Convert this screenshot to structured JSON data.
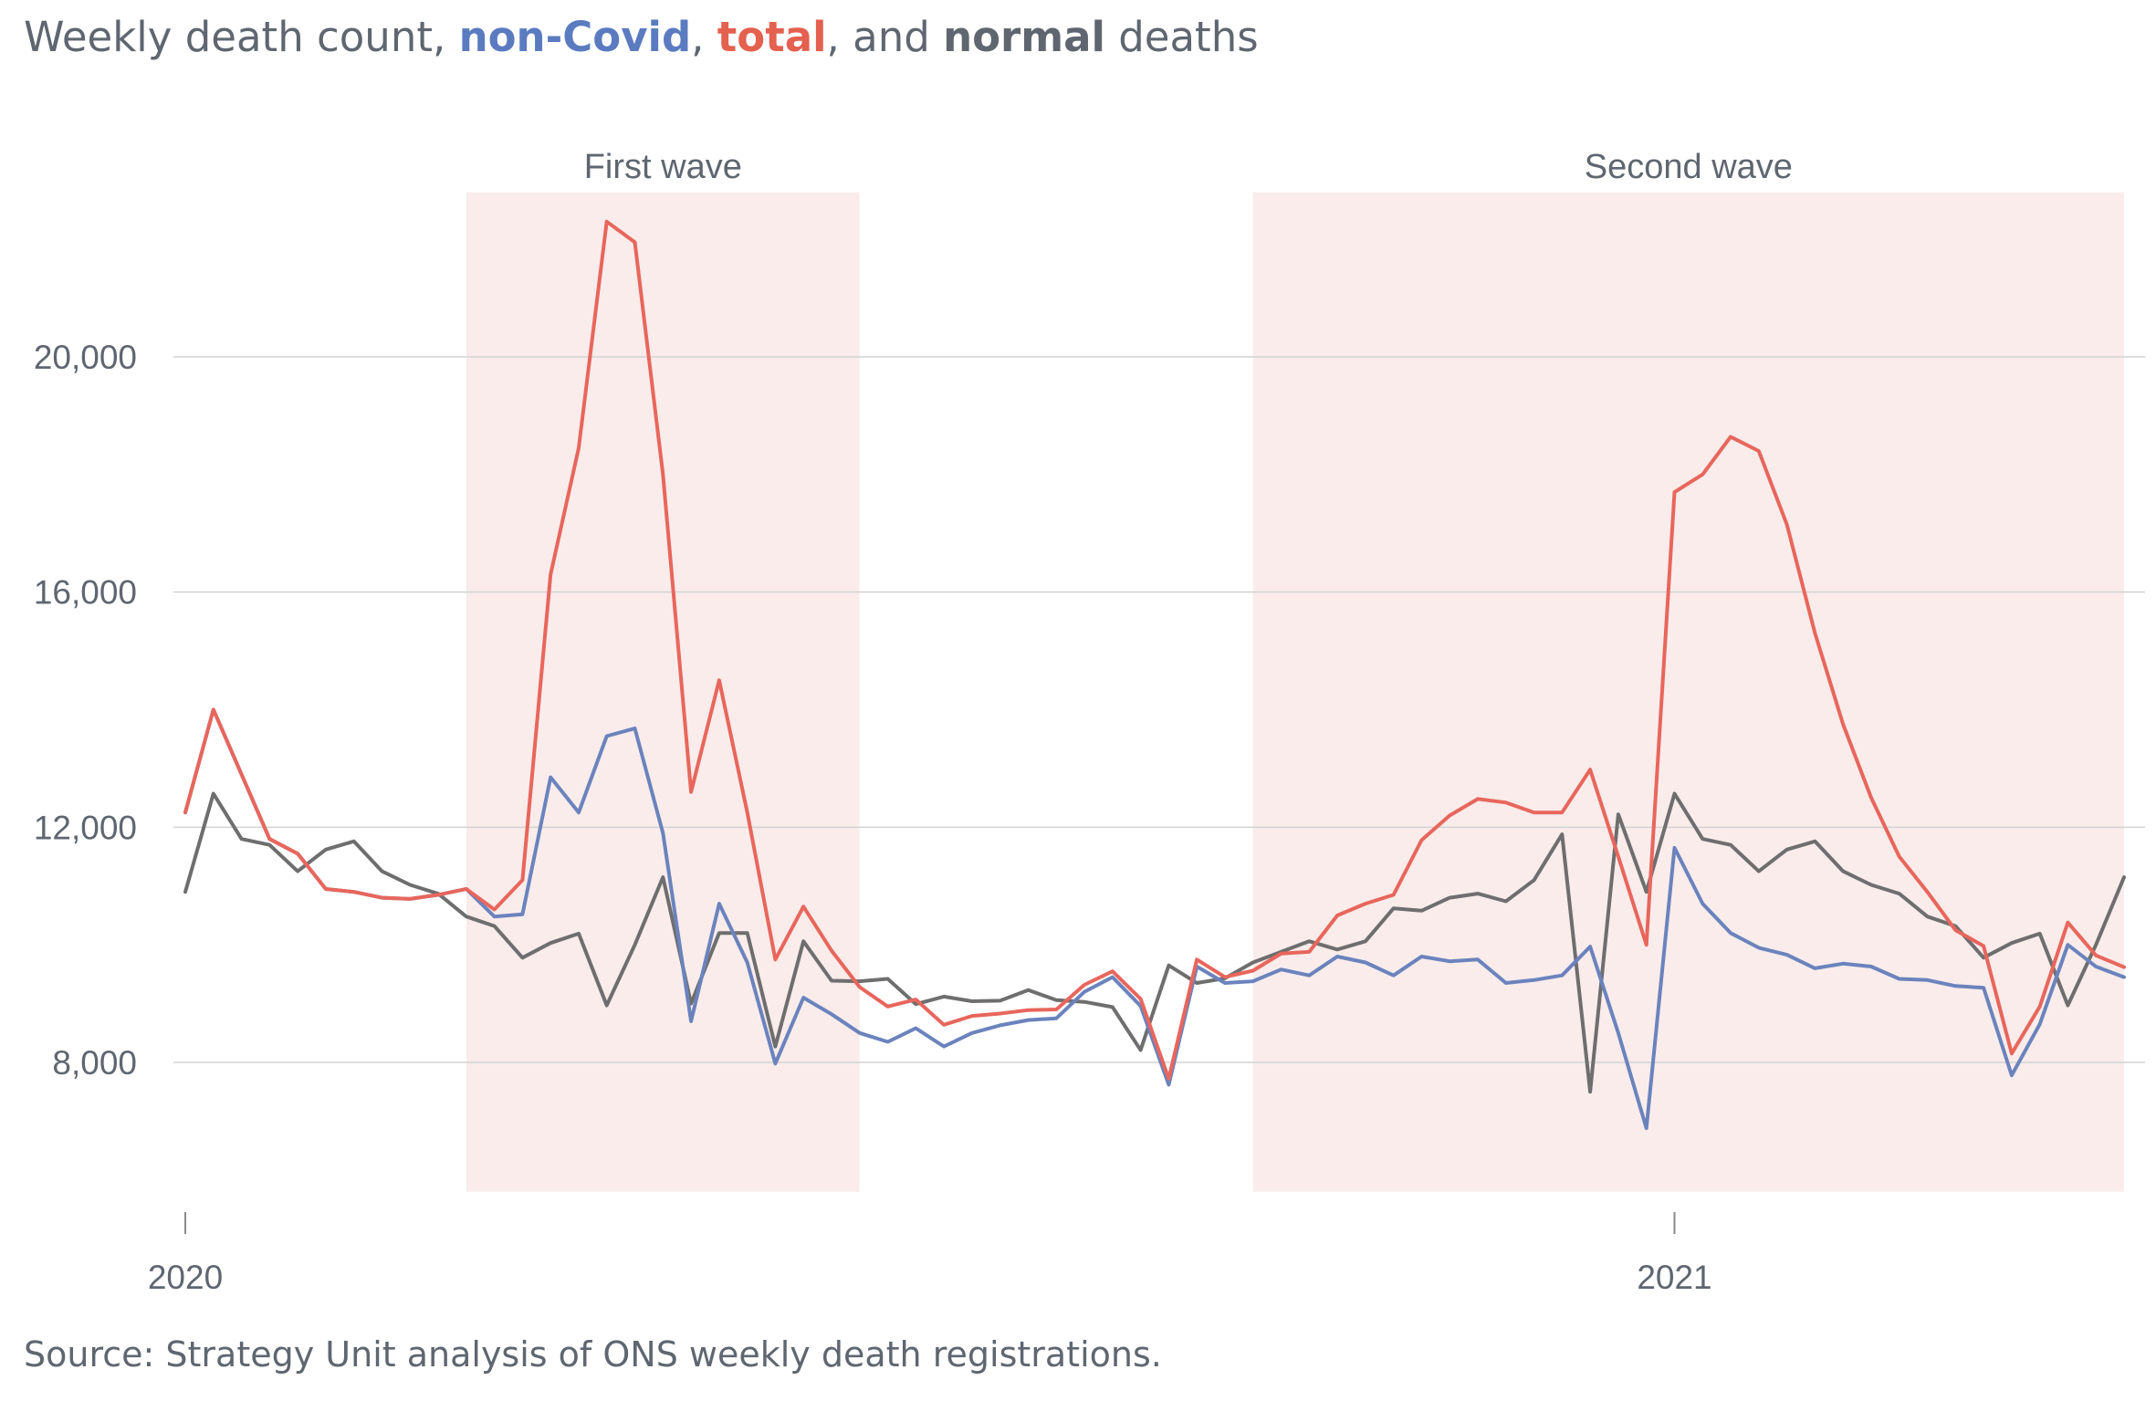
{
  "title": {
    "prefix": "Weekly death count, ",
    "noncovid": "non-Covid",
    "sep1": ", ",
    "total": "total",
    "sep2": ", and ",
    "normal": "normal",
    "suffix": " deaths"
  },
  "source": "Source: Strategy Unit analysis of ONS weekly death registrations.",
  "colors": {
    "noncovid": "#6b83bd",
    "total": "#e8665c",
    "normal": "#6e6e6e",
    "title_noncovid": "#5b7bc0",
    "title_total": "#e4604f",
    "title_normal": "#5f6670",
    "wave_shade": "#f9eceb",
    "gridline": "#d3d3d3",
    "text": "#5f6670"
  },
  "chart_data": {
    "type": "line",
    "title": "Weekly death count, non-Covid, total, and normal deaths",
    "xlabel": "",
    "ylabel": "",
    "ylim": [
      5800,
      22800
    ],
    "yticks": [
      8000,
      12000,
      16000,
      20000
    ],
    "ytick_labels": [
      "8,000",
      "12,000",
      "16,000",
      "20,000"
    ],
    "xticks": [
      {
        "label": "2020",
        "week": 0
      },
      {
        "label": "2021",
        "week": 53
      }
    ],
    "grid": true,
    "legend": "in-title",
    "annotations": [
      {
        "label": "First wave",
        "start_week": 10,
        "end_week": 24
      },
      {
        "label": "Second wave",
        "start_week": 38,
        "end_week": 69
      }
    ],
    "x": [
      0,
      1,
      2,
      3,
      4,
      5,
      6,
      7,
      8,
      9,
      10,
      11,
      12,
      13,
      14,
      15,
      16,
      17,
      18,
      19,
      20,
      21,
      22,
      23,
      24,
      25,
      26,
      27,
      28,
      29,
      30,
      31,
      32,
      33,
      34,
      35,
      36,
      37,
      38,
      39,
      40,
      41,
      42,
      43,
      44,
      45,
      46,
      47,
      48,
      49,
      50,
      51,
      52,
      53,
      54,
      55,
      56,
      57,
      58,
      59,
      60,
      61,
      62,
      63,
      64,
      65,
      66,
      67,
      68,
      69
    ],
    "series": [
      {
        "name": "non-Covid",
        "color_key": "noncovid",
        "values": [
          12250,
          14000,
          12900,
          11800,
          11550,
          10950,
          10900,
          10800,
          10780,
          10850,
          10950,
          10480,
          10520,
          12850,
          12250,
          13550,
          13680,
          11900,
          8700,
          10700,
          9700,
          7980,
          9100,
          8820,
          8500,
          8350,
          8580,
          8270,
          8500,
          8630,
          8720,
          8750,
          9200,
          9450,
          8960,
          7620,
          9630,
          9350,
          9380,
          9580,
          9480,
          9800,
          9700,
          9480,
          9800,
          9720,
          9750,
          9350,
          9400,
          9480,
          9970,
          8500,
          6880,
          11650,
          10700,
          10200,
          9950,
          9830,
          9600,
          9680,
          9630,
          9420,
          9400,
          9300,
          9270,
          7780,
          8650,
          10000,
          9630,
          9450
        ]
      },
      {
        "name": "total",
        "color_key": "total",
        "values": [
          12250,
          14000,
          12900,
          11800,
          11550,
          10950,
          10900,
          10800,
          10780,
          10850,
          10950,
          10600,
          11100,
          16300,
          18450,
          22300,
          21950,
          18000,
          12600,
          14500,
          12250,
          9750,
          10650,
          9900,
          9280,
          8950,
          9070,
          8640,
          8790,
          8830,
          8890,
          8900,
          9320,
          9550,
          9080,
          7720,
          9750,
          9450,
          9560,
          9850,
          9880,
          10500,
          10700,
          10850,
          11780,
          12200,
          12480,
          12420,
          12250,
          12250,
          12980,
          11500,
          10000,
          17700,
          18000,
          18640,
          18400,
          17150,
          15300,
          13750,
          12500,
          11500,
          10900,
          10250,
          9980,
          8150,
          8950,
          10380,
          9820,
          9620
        ]
      },
      {
        "name": "normal",
        "color_key": "normal",
        "values": [
          10900,
          12570,
          11800,
          11700,
          11250,
          11620,
          11760,
          11250,
          11020,
          10870,
          10480,
          10320,
          9780,
          10030,
          10190,
          8970,
          10000,
          11150,
          9000,
          10200,
          10200,
          8270,
          10060,
          9390,
          9380,
          9420,
          8990,
          9120,
          9040,
          9050,
          9230,
          9060,
          9030,
          8940,
          8210,
          9650,
          9350,
          9430,
          9700,
          9880,
          10060,
          9920,
          10060,
          10620,
          10580,
          10800,
          10870,
          10740,
          11100,
          11880,
          7500,
          12220,
          10900,
          12570,
          11800,
          11700,
          11250,
          11620,
          11760,
          11250,
          11020,
          10870,
          10480,
          10320,
          9780,
          10030,
          10190,
          8970,
          10000,
          11150
        ]
      }
    ]
  }
}
